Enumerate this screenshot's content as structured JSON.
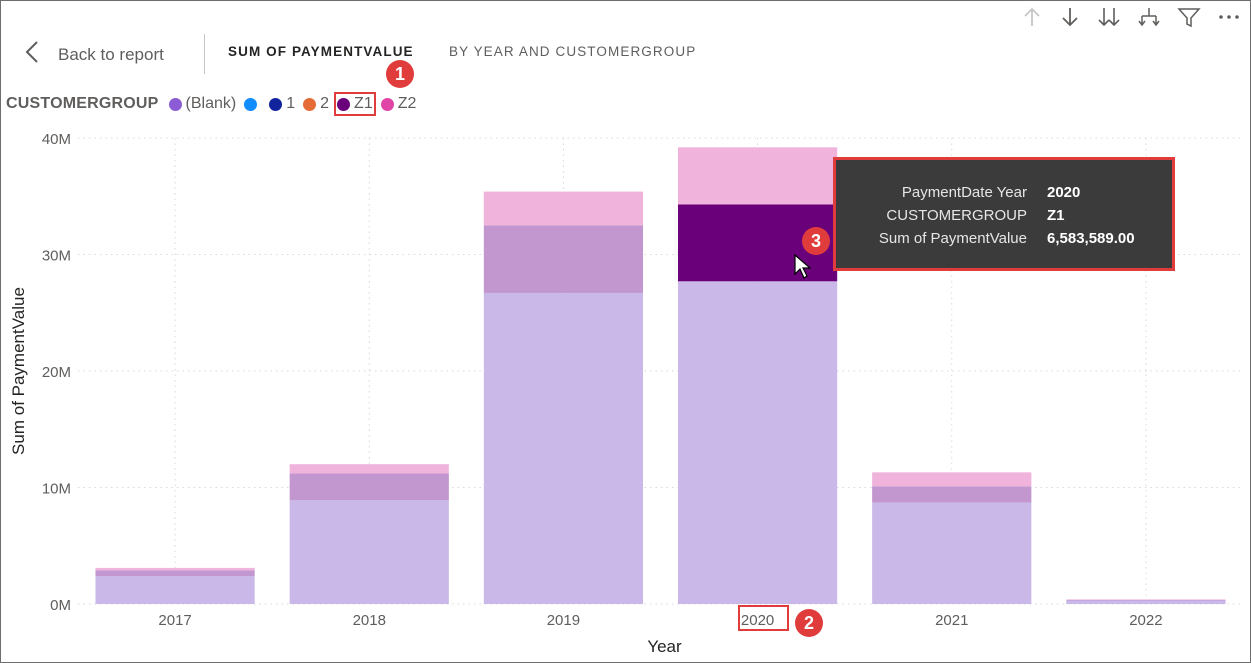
{
  "header": {
    "back_label": "Back to report",
    "title_main": "SUM OF PAYMENTVALUE",
    "title_sub": "BY YEAR AND CUSTOMERGROUP"
  },
  "legend": {
    "title": "CUSTOMERGROUP",
    "items": [
      {
        "label": "(Blank)",
        "color": "#8b5cd6"
      },
      {
        "label": "1",
        "color": "#118dff"
      },
      {
        "label": "1",
        "color": "#12239e"
      },
      {
        "label": "2",
        "color": "#e66c37"
      },
      {
        "label": "Z1",
        "color": "#6b007b"
      },
      {
        "label": "Z2",
        "color": "#e044a7"
      }
    ]
  },
  "tooltip": {
    "rows": [
      {
        "key": "PaymentDate Year",
        "value": "2020"
      },
      {
        "key": "CUSTOMERGROUP",
        "value": "Z1"
      },
      {
        "key": "Sum of PaymentValue",
        "value": "6,583,589.00"
      }
    ]
  },
  "badges": [
    "1",
    "2",
    "3"
  ],
  "chart_data": {
    "type": "bar",
    "stacked": true,
    "categories": [
      "2017",
      "2018",
      "2019",
      "2020",
      "2021",
      "2022"
    ],
    "series": [
      {
        "name": "(Blank)",
        "color": "#c9b8e8",
        "values": [
          2.4,
          8.9,
          26.7,
          27.7,
          8.7,
          0.3
        ]
      },
      {
        "name": "Z1",
        "color": "#c297cf",
        "highlight_color": "#6b007b",
        "values": [
          0.5,
          2.3,
          5.8,
          6.6,
          1.4,
          0.05
        ]
      },
      {
        "name": "Z2",
        "color": "#f0b3dc",
        "values": [
          0.2,
          0.8,
          2.9,
          4.9,
          1.2,
          0.05
        ]
      }
    ],
    "highlighted": {
      "category": "2020",
      "series": "Z1"
    },
    "xlabel": "Year",
    "ylabel": "Sum of PaymentValue",
    "yticks": [
      "0M",
      "10M",
      "20M",
      "30M",
      "40M"
    ],
    "ylim": [
      0,
      40
    ],
    "grid": true
  }
}
